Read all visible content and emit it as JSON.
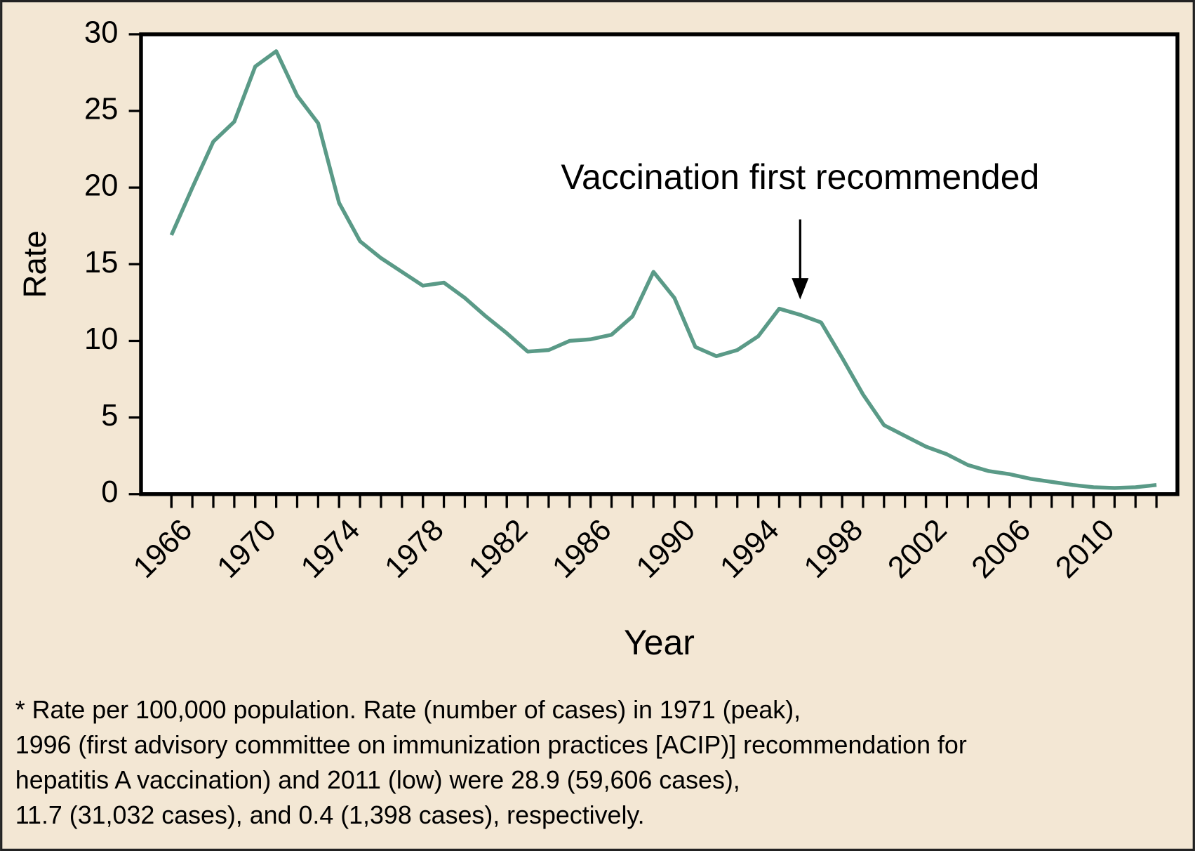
{
  "chart_data": {
    "type": "line",
    "x_label": "Year",
    "y_label": "Rate",
    "x": [
      1966,
      1967,
      1968,
      1969,
      1970,
      1971,
      1972,
      1973,
      1974,
      1975,
      1976,
      1977,
      1978,
      1979,
      1980,
      1981,
      1982,
      1983,
      1984,
      1985,
      1986,
      1987,
      1988,
      1989,
      1990,
      1991,
      1992,
      1993,
      1994,
      1995,
      1996,
      1997,
      1998,
      1999,
      2000,
      2001,
      2002,
      2003,
      2004,
      2005,
      2006,
      2007,
      2008,
      2009,
      2010,
      2011,
      2012,
      2013
    ],
    "series": [
      {
        "name": "Rate",
        "color": "#5a9a87",
        "values": [
          16.9,
          20.0,
          23.0,
          24.3,
          27.9,
          28.9,
          26.0,
          24.2,
          19.0,
          16.5,
          15.4,
          14.5,
          13.6,
          13.8,
          12.8,
          11.6,
          10.5,
          9.3,
          9.4,
          10.0,
          10.1,
          10.4,
          11.6,
          14.5,
          12.8,
          9.6,
          9.0,
          9.4,
          10.3,
          12.1,
          11.7,
          11.2,
          8.9,
          6.5,
          4.5,
          3.8,
          3.1,
          2.6,
          1.9,
          1.5,
          1.3,
          1.0,
          0.8,
          0.6,
          0.45,
          0.4,
          0.45,
          0.6
        ]
      }
    ],
    "xlim": [
      1964.55,
      2014
    ],
    "xticks": [
      1966,
      1970,
      1974,
      1978,
      1982,
      1986,
      1990,
      1994,
      1998,
      2002,
      2006,
      2010
    ],
    "xminor_ticks": [
      1966,
      1967,
      1968,
      1969,
      1970,
      1971,
      1972,
      1973,
      1974,
      1975,
      1976,
      1977,
      1978,
      1979,
      1980,
      1981,
      1982,
      1983,
      1984,
      1985,
      1986,
      1987,
      1988,
      1989,
      1990,
      1991,
      1992,
      1993,
      1994,
      1995,
      1996,
      1997,
      1998,
      1999,
      2000,
      2001,
      2002,
      2003,
      2004,
      2005,
      2006,
      2007,
      2008,
      2009,
      2010,
      2011,
      2012,
      2013
    ],
    "ylim": [
      0,
      30
    ],
    "yticks": [
      0,
      5,
      10,
      15,
      20,
      25,
      30
    ],
    "annotation": {
      "text": "Vaccination first recommended",
      "x": 1996,
      "y": 12.7
    },
    "note": [
      "* Rate per 100,000 population. Rate (number of cases) in 1971 (peak),",
      "1996 (first advisory committee on immunization practices [ACIP)] recommendation for",
      "hepatitis A vaccination) and 2011 (low) were 28.9 (59,606 cases),",
      "11.7 (31,032 cases), and 0.4 (1,398 cases), respectively."
    ]
  }
}
